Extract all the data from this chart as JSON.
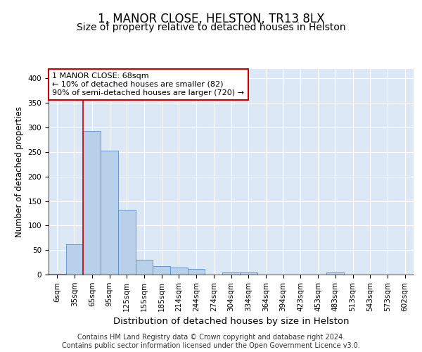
{
  "title_line1": "1, MANOR CLOSE, HELSTON, TR13 8LX",
  "title_line2": "Size of property relative to detached houses in Helston",
  "xlabel": "Distribution of detached houses by size in Helston",
  "ylabel": "Number of detached properties",
  "footer_line1": "Contains HM Land Registry data © Crown copyright and database right 2024.",
  "footer_line2": "Contains public sector information licensed under the Open Government Licence v3.0.",
  "bar_labels": [
    "6sqm",
    "35sqm",
    "65sqm",
    "95sqm",
    "125sqm",
    "155sqm",
    "185sqm",
    "214sqm",
    "244sqm",
    "274sqm",
    "304sqm",
    "334sqm",
    "364sqm",
    "394sqm",
    "423sqm",
    "453sqm",
    "483sqm",
    "513sqm",
    "543sqm",
    "573sqm",
    "602sqm"
  ],
  "bar_values": [
    2,
    62,
    293,
    253,
    132,
    30,
    17,
    15,
    11,
    0,
    4,
    5,
    0,
    0,
    0,
    0,
    4,
    0,
    0,
    0,
    0
  ],
  "bar_color": "#b8d0ea",
  "bar_edge_color": "#5b8cc8",
  "background_color": "#dce8f5",
  "grid_color": "#ffffff",
  "vline_color": "#cc0000",
  "vline_x": 1.5,
  "annotation_text": "1 MANOR CLOSE: 68sqm\n← 10% of detached houses are smaller (82)\n90% of semi-detached houses are larger (720) →",
  "annotation_box_color": "#ffffff",
  "annotation_box_edge": "#cc0000",
  "ylim": [
    0,
    420
  ],
  "yticks": [
    0,
    50,
    100,
    150,
    200,
    250,
    300,
    350,
    400
  ],
  "title_fontsize": 12,
  "subtitle_fontsize": 10,
  "xlabel_fontsize": 9.5,
  "ylabel_fontsize": 8.5,
  "tick_fontsize": 7.5,
  "footer_fontsize": 7,
  "ann_fontsize": 8
}
